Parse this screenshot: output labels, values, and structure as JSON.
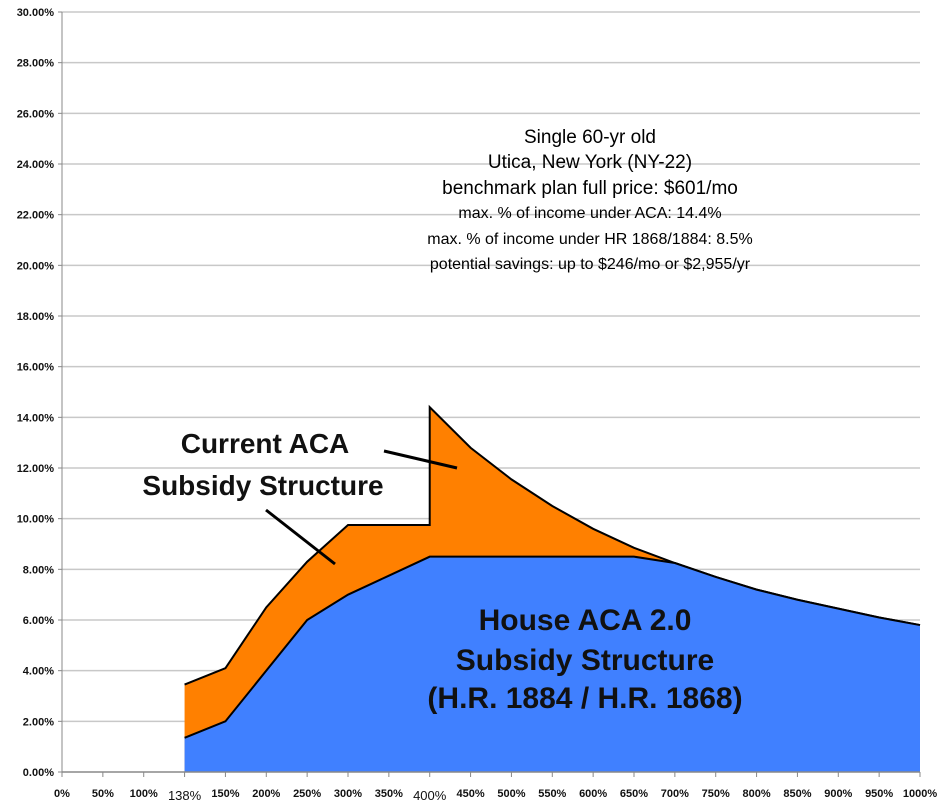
{
  "chart_data": {
    "type": "area",
    "x_categories": [
      "0%",
      "50%",
      "100%",
      "138%",
      "150%",
      "200%",
      "250%",
      "300%",
      "350%",
      "400%",
      "450%",
      "500%",
      "550%",
      "600%",
      "650%",
      "700%",
      "750%",
      "800%",
      "850%",
      "900%",
      "950%",
      "1000%"
    ],
    "y_ticks": [
      "0.00%",
      "2.00%",
      "4.00%",
      "6.00%",
      "8.00%",
      "10.00%",
      "12.00%",
      "14.00%",
      "16.00%",
      "18.00%",
      "20.00%",
      "22.00%",
      "24.00%",
      "26.00%",
      "28.00%",
      "30.00%"
    ],
    "ylim": [
      0,
      30
    ],
    "grid": true,
    "series": [
      {
        "name": "Current ACA Subsidy Structure",
        "color": "#ff8000",
        "points": [
          [
            "138%",
            3.45
          ],
          [
            "150%",
            4.1
          ],
          [
            "200%",
            6.5
          ],
          [
            "250%",
            8.3
          ],
          [
            "300%",
            9.75
          ],
          [
            "350%",
            9.75
          ],
          [
            "400%",
            9.75
          ],
          [
            "400%",
            14.4
          ],
          [
            "450%",
            12.8
          ],
          [
            "500%",
            11.55
          ],
          [
            "550%",
            10.5
          ],
          [
            "600%",
            9.6
          ],
          [
            "650%",
            8.85
          ],
          [
            "700%",
            8.25
          ],
          [
            "750%",
            7.7
          ],
          [
            "800%",
            7.2
          ],
          [
            "850%",
            6.8
          ],
          [
            "900%",
            6.45
          ],
          [
            "950%",
            6.1
          ],
          [
            "1000%",
            5.8
          ]
        ]
      },
      {
        "name": "House ACA 2.0 Subsidy Structure (H.R. 1884 / H.R. 1868)",
        "color": "#4080ff",
        "points": [
          [
            "138%",
            1.35
          ],
          [
            "150%",
            2.0
          ],
          [
            "200%",
            4.0
          ],
          [
            "250%",
            6.0
          ],
          [
            "300%",
            7.0
          ],
          [
            "350%",
            7.75
          ],
          [
            "400%",
            8.5
          ],
          [
            "450%",
            8.5
          ],
          [
            "500%",
            8.5
          ],
          [
            "550%",
            8.5
          ],
          [
            "600%",
            8.5
          ],
          [
            "650%",
            8.5
          ],
          [
            "700%",
            8.25
          ],
          [
            "750%",
            7.7
          ],
          [
            "800%",
            7.2
          ],
          [
            "850%",
            6.8
          ],
          [
            "900%",
            6.45
          ],
          [
            "950%",
            6.1
          ],
          [
            "1000%",
            5.8
          ]
        ]
      }
    ],
    "annotation_lines": [
      "Single 60-yr old",
      "Utica, New York (NY-22)",
      "benchmark plan full price: $601/mo",
      "max. % of income under ACA: 14.4%",
      "max. % of income under HR 1868/1884: 8.5%",
      "potential savings: up to $246/mo or $2,955/yr"
    ],
    "aca_label": [
      "Current ACA",
      "Subsidy Structure"
    ],
    "house_label": [
      "House ACA 2.0",
      "Subsidy Structure",
      "(H.R. 1884 / H.R. 1868)"
    ]
  }
}
